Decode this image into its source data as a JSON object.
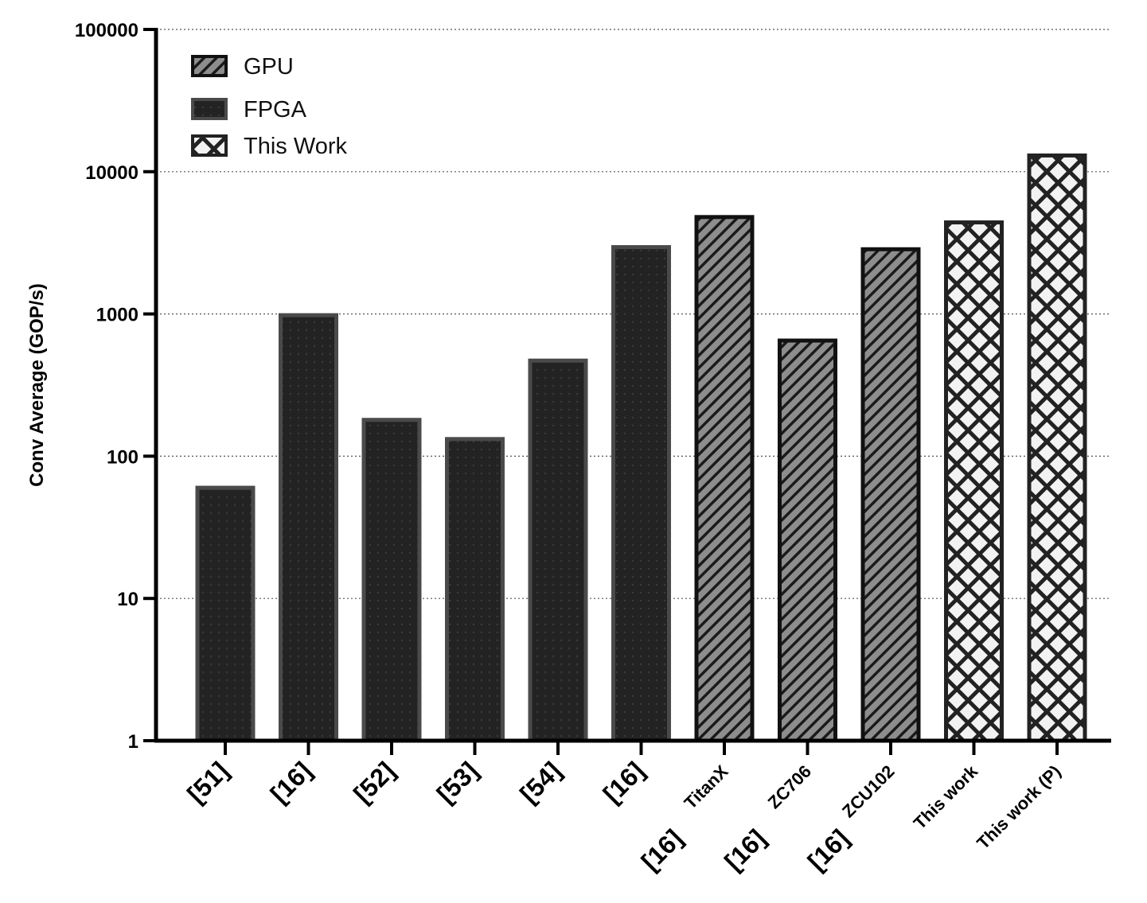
{
  "chart_data": {
    "type": "bar",
    "ylabel": "Conv Average (GOP/s)",
    "xlabel": "",
    "title": "",
    "yscale": "log",
    "ylim": [
      1,
      100000
    ],
    "yticks": [
      "1",
      "10",
      "100",
      "1000",
      "10000",
      "100000"
    ],
    "grid": "horizontal dotted",
    "legend_position": "top-left",
    "legend": [
      {
        "name": "GPU",
        "pattern": "diagonal-stripes"
      },
      {
        "name": "FPGA",
        "pattern": "dots"
      },
      {
        "name": "This Work",
        "pattern": "crosshatch"
      }
    ],
    "categories": [
      {
        "ref": "[51]",
        "sub": "",
        "group": "FPGA",
        "value": 60
      },
      {
        "ref": "[16]",
        "sub": "",
        "group": "FPGA",
        "value": 980
      },
      {
        "ref": "[52]",
        "sub": "",
        "group": "FPGA",
        "value": 180
      },
      {
        "ref": "[53]",
        "sub": "",
        "group": "FPGA",
        "value": 132
      },
      {
        "ref": "[54]",
        "sub": "",
        "group": "FPGA",
        "value": 470
      },
      {
        "ref": "[16]",
        "sub": "",
        "group": "FPGA",
        "value": 2950
      },
      {
        "ref": "[16]",
        "sub": "TitanX",
        "group": "GPU",
        "value": 4800
      },
      {
        "ref": "[16]",
        "sub": "ZC706",
        "group": "GPU",
        "value": 650
      },
      {
        "ref": "[16]",
        "sub": "ZCU102",
        "group": "GPU",
        "value": 2850
      },
      {
        "ref": "This work",
        "sub": "",
        "group": "This Work",
        "value": 4400
      },
      {
        "ref": "This work (P)",
        "sub": "",
        "group": "This Work",
        "value": 13000
      }
    ],
    "colors": {
      "fpga_fill": "#232323",
      "fpga_border": "#4a4a4a",
      "gpu_fill": "#8a8a8a",
      "gpu_border": "#111111",
      "work_fill": "#f2f2f2",
      "work_border": "#222222",
      "grid": "#555555"
    }
  }
}
